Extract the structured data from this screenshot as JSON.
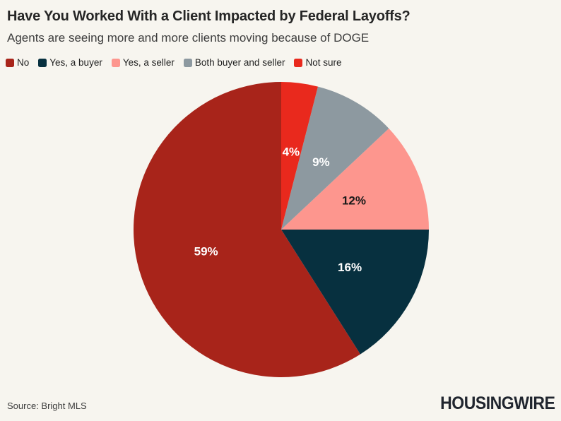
{
  "chart_data": {
    "type": "pie",
    "title": "Have You Worked With a Client Impacted by Federal Layoffs?",
    "subtitle": "Agents are seeing more and more clients moving because of DOGE",
    "unit": "%",
    "start_angle": "top",
    "direction": "counterclockwise",
    "legend_position": "top-left",
    "slices": [
      {
        "label": "No",
        "value": 59,
        "color": "#a8241a",
        "text_color": "#ffffff"
      },
      {
        "label": "Yes, a buyer",
        "value": 16,
        "color": "#07303f",
        "text_color": "#ffffff"
      },
      {
        "label": "Yes, a seller",
        "value": 12,
        "color": "#fd968e",
        "text_color": "#1a1a1a"
      },
      {
        "label": "Both buyer and seller",
        "value": 9,
        "color": "#8d99a0",
        "text_color": "#ffffff"
      },
      {
        "label": "Not sure",
        "value": 4,
        "color": "#e9291d",
        "text_color": "#ffffff"
      }
    ]
  },
  "footer": {
    "source": "Source: Bright MLS",
    "logo": "HOUSINGWIRE"
  }
}
